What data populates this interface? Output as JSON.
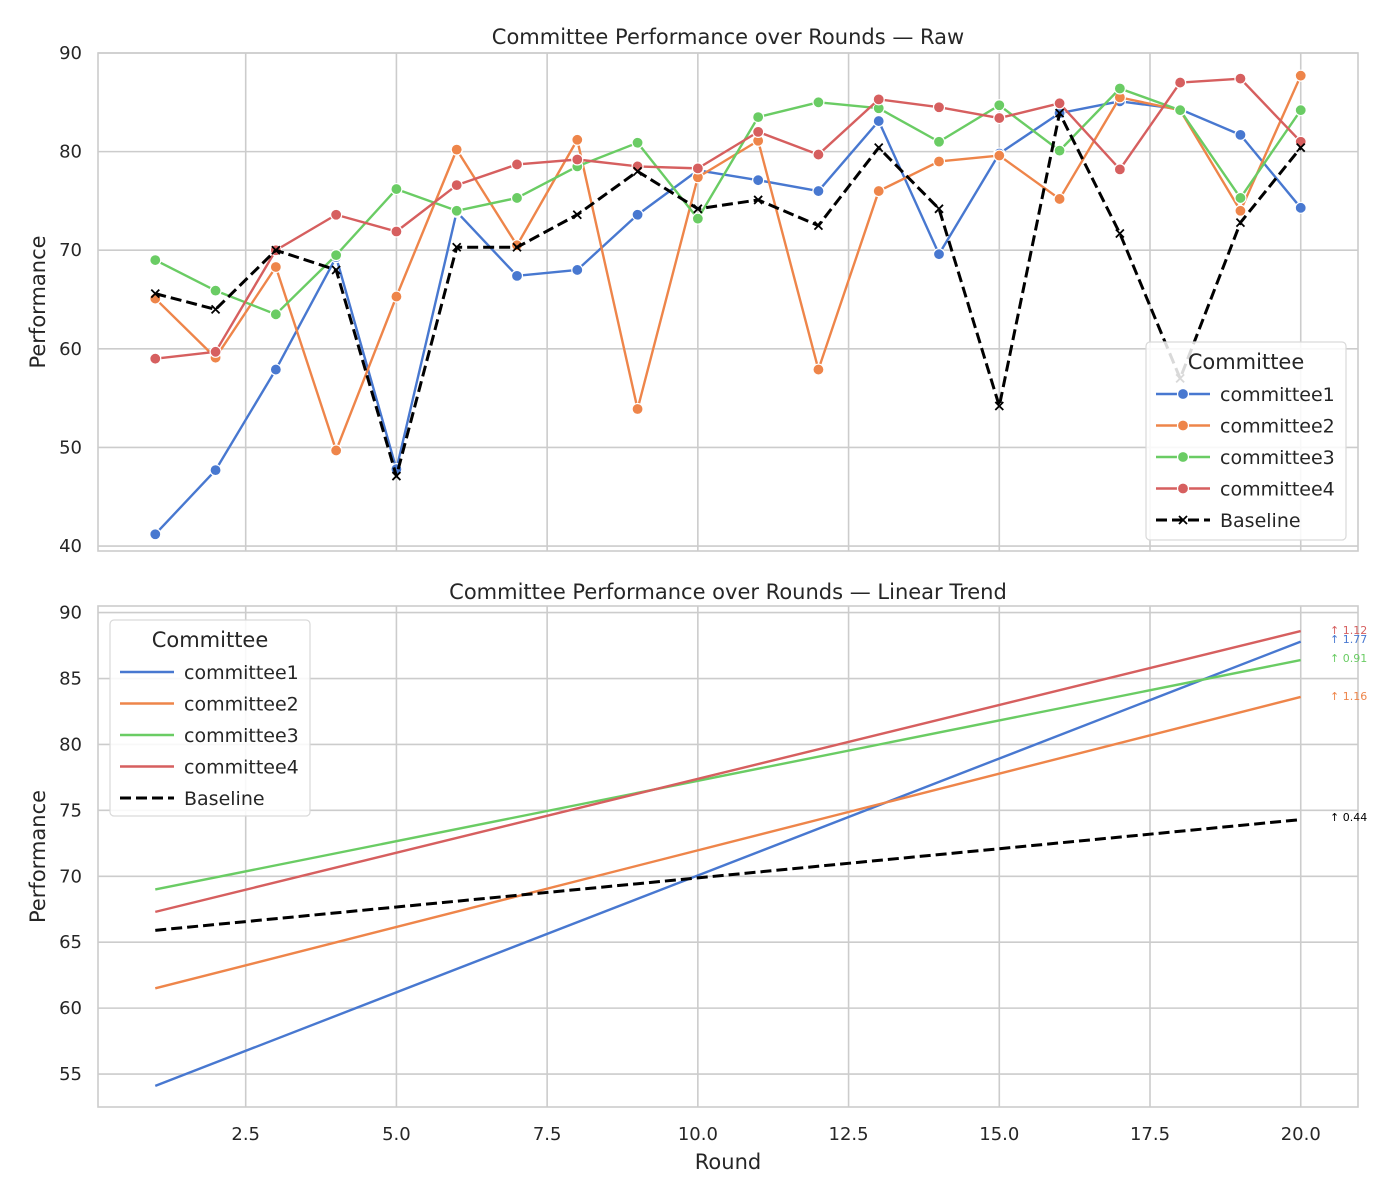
{
  "chart_data": [
    {
      "type": "line",
      "title": "Committee Performance over Rounds — Raw",
      "xlabel": "",
      "ylabel": "Performance",
      "xlim": [
        0.05,
        20.95
      ],
      "ylim": [
        39.5,
        90
      ],
      "xticks": [
        2.5,
        5.0,
        7.5,
        10.0,
        12.5,
        15.0,
        17.5,
        20.0
      ],
      "xtick_labels": [
        "",
        "",
        "",
        "",
        "",
        "",
        "",
        ""
      ],
      "yticks": [
        40,
        50,
        60,
        70,
        80,
        90
      ],
      "ytick_labels": [
        "40",
        "50",
        "60",
        "70",
        "80",
        "90"
      ],
      "grid": true,
      "legend": {
        "title": "Committee",
        "placement": "lower-right",
        "markers": true
      },
      "x": [
        1,
        2,
        3,
        4,
        5,
        6,
        7,
        8,
        9,
        10,
        11,
        12,
        13,
        14,
        15,
        16,
        17,
        18,
        19,
        20
      ],
      "series": [
        {
          "name": "committee1",
          "color": "#4878d0",
          "style": "solid",
          "marker": "circle",
          "values": [
            41.2,
            47.7,
            57.9,
            69.3,
            47.8,
            73.9,
            67.4,
            68.0,
            73.6,
            78.1,
            77.1,
            76.0,
            83.1,
            69.6,
            79.8,
            83.9,
            85.1,
            84.3,
            81.7,
            74.3
          ]
        },
        {
          "name": "committee2",
          "color": "#ee854a",
          "style": "solid",
          "marker": "circle",
          "values": [
            65.1,
            59.1,
            68.3,
            49.7,
            65.3,
            80.2,
            70.5,
            81.2,
            53.9,
            77.4,
            81.1,
            57.9,
            76.0,
            79.0,
            79.6,
            75.2,
            85.5,
            84.2,
            74.0,
            87.7
          ]
        },
        {
          "name": "committee3",
          "color": "#6acc64",
          "style": "solid",
          "marker": "circle",
          "values": [
            69.0,
            65.9,
            63.5,
            69.5,
            76.2,
            74.0,
            75.3,
            78.5,
            80.9,
            73.2,
            83.5,
            85.0,
            84.4,
            81.0,
            84.7,
            80.1,
            86.4,
            84.2,
            75.3,
            84.2
          ]
        },
        {
          "name": "committee4",
          "color": "#d65f5f",
          "style": "solid",
          "marker": "circle",
          "values": [
            59.0,
            59.7,
            70.0,
            73.6,
            71.9,
            76.6,
            78.7,
            79.2,
            78.5,
            78.3,
            82.0,
            79.7,
            85.3,
            84.5,
            83.4,
            84.9,
            78.2,
            87.0,
            87.4,
            81.0
          ]
        },
        {
          "name": "Baseline",
          "color": "#000000",
          "style": "dashed",
          "marker": "x",
          "values": [
            65.6,
            64.0,
            70.0,
            68.0,
            47.1,
            70.3,
            70.3,
            73.6,
            78.0,
            74.2,
            75.1,
            72.5,
            80.4,
            74.2,
            54.2,
            83.9,
            71.7,
            57.0,
            72.8,
            80.4
          ]
        }
      ]
    },
    {
      "type": "line",
      "title": "Committee Performance over Rounds — Linear Trend",
      "xlabel": "Round",
      "ylabel": "Performance",
      "xlim": [
        0.05,
        20.95
      ],
      "ylim": [
        52.5,
        90.5
      ],
      "xticks": [
        2.5,
        5.0,
        7.5,
        10.0,
        12.5,
        15.0,
        17.5,
        20.0
      ],
      "xtick_labels": [
        "2.5",
        "5.0",
        "7.5",
        "10.0",
        "12.5",
        "15.0",
        "17.5",
        "20.0"
      ],
      "yticks": [
        55,
        60,
        65,
        70,
        75,
        80,
        85,
        90
      ],
      "ytick_labels": [
        "55",
        "60",
        "65",
        "70",
        "75",
        "80",
        "85",
        "90"
      ],
      "grid": true,
      "legend": {
        "title": "Committee",
        "placement": "upper-left",
        "markers": false
      },
      "x": [
        1,
        20
      ],
      "series": [
        {
          "name": "committee1",
          "color": "#4878d0",
          "style": "solid",
          "values": [
            54.1,
            87.8
          ],
          "annotation": "↑ 1.77"
        },
        {
          "name": "committee2",
          "color": "#ee854a",
          "style": "solid",
          "values": [
            61.5,
            83.6
          ],
          "annotation": "↑ 1.16"
        },
        {
          "name": "committee3",
          "color": "#6acc64",
          "style": "solid",
          "values": [
            69.0,
            86.4
          ],
          "annotation": "↑ 0.91"
        },
        {
          "name": "committee4",
          "color": "#d65f5f",
          "style": "solid",
          "values": [
            67.3,
            88.6
          ],
          "annotation": "↑ 1.12"
        },
        {
          "name": "Baseline",
          "color": "#000000",
          "style": "dashed",
          "values": [
            65.9,
            74.3
          ],
          "annotation": "↑ 0.44"
        }
      ]
    }
  ]
}
